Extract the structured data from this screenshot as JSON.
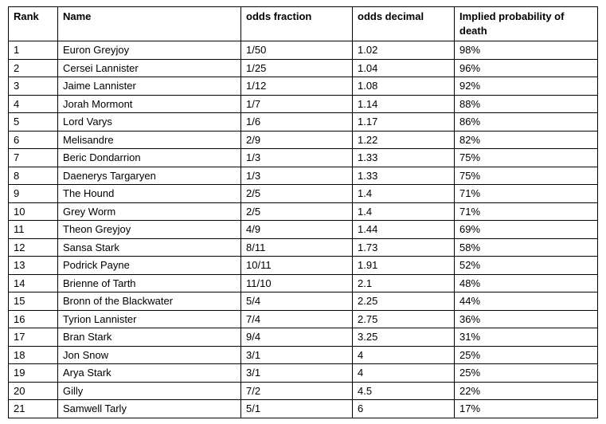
{
  "table": {
    "header": [
      "Rank",
      "Name",
      "odds fraction",
      "odds decimal",
      "Implied probability of death"
    ],
    "rows": [
      [
        "1",
        "Euron Greyjoy",
        "1/50",
        "1.02",
        "98%"
      ],
      [
        "2",
        "Cersei Lannister",
        "1/25",
        "1.04",
        "96%"
      ],
      [
        "3",
        "Jaime Lannister",
        "1/12",
        "1.08",
        "92%"
      ],
      [
        "4",
        "Jorah Mormont",
        "1/7",
        "1.14",
        "88%"
      ],
      [
        "5",
        "Lord Varys",
        "1/6",
        "1.17",
        "86%"
      ],
      [
        "6",
        "Melisandre",
        "2/9",
        "1.22",
        "82%"
      ],
      [
        "7",
        "Beric Dondarrion",
        "1/3",
        "1.33",
        "75%"
      ],
      [
        "8",
        "Daenerys Targaryen",
        "1/3",
        "1.33",
        "75%"
      ],
      [
        "9",
        "The Hound",
        "2/5",
        "1.4",
        "71%"
      ],
      [
        "10",
        "Grey Worm",
        "2/5",
        "1.4",
        "71%"
      ],
      [
        "11",
        "Theon Greyjoy",
        "4/9",
        "1.44",
        "69%"
      ],
      [
        "12",
        "Sansa Stark",
        "8/11",
        "1.73",
        "58%"
      ],
      [
        "13",
        "Podrick Payne",
        "10/11",
        "1.91",
        "52%"
      ],
      [
        "14",
        "Brienne of Tarth",
        "11/10",
        "2.1",
        "48%"
      ],
      [
        "15",
        "Bronn of the Blackwater",
        "5/4",
        "2.25",
        "44%"
      ],
      [
        "16",
        "Tyrion Lannister",
        "7/4",
        "2.75",
        "36%"
      ],
      [
        "17",
        "Bran Stark",
        "9/4",
        "3.25",
        "31%"
      ],
      [
        "18",
        "Jon Snow",
        "3/1",
        "4",
        "25%"
      ],
      [
        "19",
        "Arya Stark",
        "3/1",
        "4",
        "25%"
      ],
      [
        "20",
        "Gilly",
        "7/2",
        "4.5",
        "22%"
      ],
      [
        "21",
        "Samwell Tarly",
        "5/1",
        "6",
        "17%"
      ]
    ]
  }
}
